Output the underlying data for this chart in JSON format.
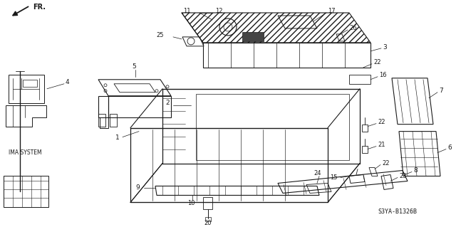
{
  "background_color": "#ffffff",
  "fig_width": 6.4,
  "fig_height": 3.19,
  "dpi": 100,
  "diagram_code": "S3YA-B1326B",
  "line_color": "#1a1a1a",
  "gray_color": "#888888"
}
